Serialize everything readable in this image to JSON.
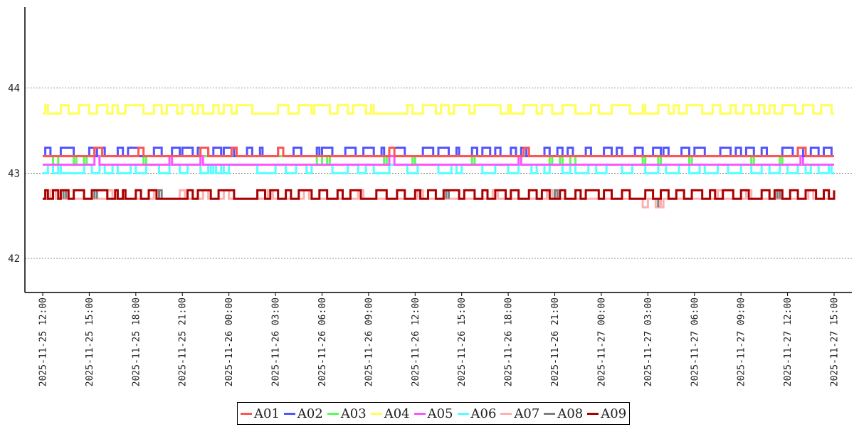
{
  "chart_data": {
    "type": "line",
    "title": "",
    "xlabel": "",
    "ylabel": "",
    "ylim": [
      41.6,
      44.95
    ],
    "yticks": [
      42,
      43,
      44
    ],
    "x_range": [
      "2025-11-25 12:00",
      "2025-11-27 15:00"
    ],
    "x_ticks": [
      "2025-11-25 12:00",
      "2025-11-25 15:00",
      "2025-11-25 18:00",
      "2025-11-25 21:00",
      "2025-11-26 00:00",
      "2025-11-26 03:00",
      "2025-11-26 06:00",
      "2025-11-26 09:00",
      "2025-11-26 12:00",
      "2025-11-26 15:00",
      "2025-11-26 18:00",
      "2025-11-26 21:00",
      "2025-11-27 00:00",
      "2025-11-27 03:00",
      "2025-11-27 06:00",
      "2025-11-27 09:00",
      "2025-11-27 12:00",
      "2025-11-27 15:00"
    ],
    "grid": "horizontal dotted",
    "legend": "bottom-center",
    "series": [
      {
        "name": "A01",
        "color": "#ff5555",
        "values": [
          43.2,
          43.3
        ],
        "switch_times": [
          "2025-11-25 15:20",
          "2025-11-25 15:50",
          "2025-11-25 18:10",
          "2025-11-25 18:30",
          "2025-11-25 22:10",
          "2025-11-25 22:40",
          "2025-11-26 00:10",
          "2025-11-26 00:30",
          "2025-11-26 03:10",
          "2025-11-26 03:30",
          "2025-11-26 10:20",
          "2025-11-26 10:40",
          "2025-11-26 19:00",
          "2025-11-26 19:20",
          "2025-11-27 12:40",
          "2025-11-27 13:10"
        ]
      },
      {
        "name": "A02",
        "color": "#5555ff",
        "values": [
          43.2,
          43.3
        ],
        "switch_times": [
          "2025-11-25 12:10",
          "2025-11-25 12:30",
          "2025-11-25 13:10",
          "2025-11-25 14:00",
          "2025-11-25 15:00",
          "2025-11-25 15:20",
          "2025-11-25 15:30",
          "2025-11-25 16:00",
          "2025-11-25 16:50",
          "2025-11-25 17:10",
          "2025-11-25 17:30",
          "2025-11-25 18:10",
          "2025-11-25 19:10",
          "2025-11-25 19:40",
          "2025-11-25 20:20",
          "2025-11-25 20:50",
          "2025-11-25 21:00",
          "2025-11-25 21:40",
          "2025-11-25 22:00",
          "2025-11-25 22:40",
          "2025-11-25 23:00",
          "2025-11-25 23:30",
          "2025-11-25 23:40",
          "2025-11-26 00:20",
          "2025-11-26 01:10",
          "2025-11-26 01:30",
          "2025-11-26 02:00",
          "2025-11-26 02:10",
          "2025-11-26 03:10",
          "2025-11-26 03:30",
          "2025-11-26 04:10",
          "2025-11-26 04:40",
          "2025-11-26 05:40",
          "2025-11-26 05:50",
          "2025-11-26 06:00",
          "2025-11-26 06:40",
          "2025-11-26 07:30",
          "2025-11-26 08:10",
          "2025-11-26 08:40",
          "2025-11-26 09:20",
          "2025-11-26 09:50",
          "2025-11-26 10:00",
          "2025-11-26 10:20",
          "2025-11-26 11:20",
          "2025-11-26 12:30",
          "2025-11-26 13:10",
          "2025-11-26 13:30",
          "2025-11-26 14:10",
          "2025-11-26 14:40",
          "2025-11-26 14:50",
          "2025-11-26 15:40",
          "2025-11-26 16:00",
          "2025-11-26 16:20",
          "2025-11-26 16:50",
          "2025-11-26 17:10",
          "2025-11-26 17:30",
          "2025-11-26 18:10",
          "2025-11-26 18:30",
          "2025-11-26 18:50",
          "2025-11-26 19:10",
          "2025-11-26 20:20",
          "2025-11-26 20:40",
          "2025-11-26 21:10",
          "2025-11-26 21:30",
          "2025-11-26 21:50",
          "2025-11-26 22:10",
          "2025-11-26 23:00",
          "2025-11-26 23:20",
          "2025-11-27 00:10",
          "2025-11-27 00:40",
          "2025-11-27 01:00",
          "2025-11-27 01:20",
          "2025-11-27 02:10",
          "2025-11-27 02:40",
          "2025-11-27 03:20",
          "2025-11-27 03:50",
          "2025-11-27 04:00",
          "2025-11-27 04:20",
          "2025-11-27 05:10",
          "2025-11-27 05:40",
          "2025-11-27 06:00",
          "2025-11-27 06:40",
          "2025-11-27 07:40",
          "2025-11-27 08:20",
          "2025-11-27 08:40",
          "2025-11-27 09:00",
          "2025-11-27 09:20",
          "2025-11-27 09:50",
          "2025-11-27 10:20",
          "2025-11-27 10:40",
          "2025-11-27 11:40",
          "2025-11-27 12:20",
          "2025-11-27 12:40",
          "2025-11-27 13:00",
          "2025-11-27 13:30",
          "2025-11-27 14:00",
          "2025-11-27 14:20",
          "2025-11-27 14:50"
        ]
      },
      {
        "name": "A03",
        "color": "#55ff55",
        "values": [
          43.2,
          43.1
        ],
        "switch_times": [
          "2025-11-25 12:40",
          "2025-11-25 13:00",
          "2025-11-25 14:00",
          "2025-11-25 14:10",
          "2025-11-25 14:40",
          "2025-11-25 14:50",
          "2025-11-25 18:30",
          "2025-11-25 18:40",
          "2025-11-26 05:40",
          "2025-11-26 06:00",
          "2025-11-26 06:20",
          "2025-11-26 06:30",
          "2025-11-26 10:00",
          "2025-11-26 10:10",
          "2025-11-26 11:50",
          "2025-11-26 12:00",
          "2025-11-26 15:40",
          "2025-11-26 15:50",
          "2025-11-26 20:40",
          "2025-11-26 20:50",
          "2025-11-26 21:20",
          "2025-11-26 21:30",
          "2025-11-26 22:00",
          "2025-11-26 22:20",
          "2025-11-27 02:40",
          "2025-11-27 02:50",
          "2025-11-27 03:40",
          "2025-11-27 03:50",
          "2025-11-27 05:40",
          "2025-11-27 05:50",
          "2025-11-27 09:40",
          "2025-11-27 09:50",
          "2025-11-27 11:30",
          "2025-11-27 11:40"
        ]
      },
      {
        "name": "A04",
        "color": "#ffff55",
        "values": [
          43.7,
          43.8
        ],
        "switch_times": [
          "2025-11-25 12:10",
          "2025-11-25 12:20",
          "2025-11-25 13:10",
          "2025-11-25 13:40",
          "2025-11-25 14:20",
          "2025-11-25 15:00",
          "2025-11-25 15:30",
          "2025-11-25 16:10",
          "2025-11-25 16:30",
          "2025-11-25 16:50",
          "2025-11-25 17:20",
          "2025-11-25 18:30",
          "2025-11-25 19:10",
          "2025-11-25 19:40",
          "2025-11-25 20:00",
          "2025-11-25 20:40",
          "2025-11-25 21:00",
          "2025-11-25 21:40",
          "2025-11-25 22:00",
          "2025-11-25 22:20",
          "2025-11-25 23:00",
          "2025-11-25 23:20",
          "2025-11-25 23:40",
          "2025-11-26 00:10",
          "2025-11-26 00:30",
          "2025-11-26 01:30",
          "2025-11-26 03:10",
          "2025-11-26 03:50",
          "2025-11-26 04:30",
          "2025-11-26 05:20",
          "2025-11-26 05:30",
          "2025-11-26 06:30",
          "2025-11-26 07:00",
          "2025-11-26 07:40",
          "2025-11-26 08:00",
          "2025-11-26 08:50",
          "2025-11-26 09:10",
          "2025-11-26 09:20",
          "2025-11-26 11:30",
          "2025-11-26 11:50",
          "2025-11-26 12:30",
          "2025-11-26 13:20",
          "2025-11-26 13:40",
          "2025-11-26 14:10",
          "2025-11-26 14:30",
          "2025-11-26 15:30",
          "2025-11-26 15:50",
          "2025-11-26 17:30",
          "2025-11-26 18:00",
          "2025-11-26 18:10",
          "2025-11-26 19:00",
          "2025-11-26 19:50",
          "2025-11-26 20:10",
          "2025-11-26 20:50",
          "2025-11-26 21:30",
          "2025-11-26 22:20",
          "2025-11-26 23:20",
          "2025-11-26 23:50",
          "2025-11-27 00:40",
          "2025-11-27 01:50",
          "2025-11-27 02:40",
          "2025-11-27 02:50",
          "2025-11-27 03:40",
          "2025-11-27 04:20",
          "2025-11-27 04:40",
          "2025-11-27 05:00",
          "2025-11-27 05:30",
          "2025-11-27 06:30",
          "2025-11-27 07:10",
          "2025-11-27 07:40",
          "2025-11-27 08:20",
          "2025-11-27 08:40",
          "2025-11-27 09:10",
          "2025-11-27 09:40",
          "2025-11-27 10:10",
          "2025-11-27 10:30",
          "2025-11-27 10:50",
          "2025-11-27 11:10",
          "2025-11-27 11:40",
          "2025-11-27 12:30",
          "2025-11-27 13:00",
          "2025-11-27 13:40",
          "2025-11-27 14:10",
          "2025-11-27 14:50"
        ]
      },
      {
        "name": "A05",
        "color": "#ff55ff",
        "values": [
          43.1,
          43.2
        ],
        "switch_times": [
          "2025-11-25 15:20",
          "2025-11-25 15:40",
          "2025-11-25 20:10",
          "2025-11-25 20:20",
          "2025-11-25 22:10",
          "2025-11-25 22:20",
          "2025-11-26 10:20",
          "2025-11-26 10:40",
          "2025-11-26 18:40",
          "2025-11-26 18:50",
          "2025-11-27 12:50",
          "2025-11-27 13:00"
        ]
      },
      {
        "name": "A06",
        "color": "#55ffff",
        "values": [
          43.0,
          43.1
        ],
        "switch_times": [
          "2025-11-25 12:20",
          "2025-11-25 12:40",
          "2025-11-25 13:00",
          "2025-11-25 13:10",
          "2025-11-25 14:40",
          "2025-11-25 15:10",
          "2025-11-25 15:40",
          "2025-11-25 16:00",
          "2025-11-25 16:30",
          "2025-11-25 16:50",
          "2025-11-25 17:40",
          "2025-11-25 18:00",
          "2025-11-25 18:40",
          "2025-11-25 19:30",
          "2025-11-25 20:10",
          "2025-11-25 20:50",
          "2025-11-25 21:20",
          "2025-11-25 22:10",
          "2025-11-25 22:40",
          "2025-11-25 22:50",
          "2025-11-25 23:00",
          "2025-11-25 23:10",
          "2025-11-25 23:30",
          "2025-11-25 23:40",
          "2025-11-26 00:00",
          "2025-11-26 01:50",
          "2025-11-26 03:00",
          "2025-11-26 03:40",
          "2025-11-26 04:20",
          "2025-11-26 05:00",
          "2025-11-26 05:20",
          "2025-11-26 06:40",
          "2025-11-26 07:40",
          "2025-11-26 08:20",
          "2025-11-26 08:50",
          "2025-11-26 09:20",
          "2025-11-26 10:20",
          "2025-11-26 11:30",
          "2025-11-26 12:10",
          "2025-11-26 13:30",
          "2025-11-26 14:20",
          "2025-11-26 14:40",
          "2025-11-26 15:00",
          "2025-11-26 16:20",
          "2025-11-26 17:10",
          "2025-11-26 18:00",
          "2025-11-26 18:40",
          "2025-11-26 19:30",
          "2025-11-26 19:50",
          "2025-11-26 20:20",
          "2025-11-26 20:40",
          "2025-11-26 21:30",
          "2025-11-26 22:00",
          "2025-11-26 22:20",
          "2025-11-26 23:10",
          "2025-11-26 23:40",
          "2025-11-27 00:20",
          "2025-11-27 01:20",
          "2025-11-27 02:00",
          "2025-11-27 02:50",
          "2025-11-27 03:40",
          "2025-11-27 04:10",
          "2025-11-27 05:00",
          "2025-11-27 05:40",
          "2025-11-27 06:20",
          "2025-11-27 06:40",
          "2025-11-27 07:30",
          "2025-11-27 08:10",
          "2025-11-27 09:00",
          "2025-11-27 09:40",
          "2025-11-27 10:20",
          "2025-11-27 10:50",
          "2025-11-27 11:30",
          "2025-11-27 12:00",
          "2025-11-27 12:40",
          "2025-11-27 13:10",
          "2025-11-27 13:30",
          "2025-11-27 14:00",
          "2025-11-27 14:40",
          "2025-11-27 14:50"
        ]
      },
      {
        "name": "A07",
        "color": "#ffb0b0",
        "values": [
          42.7,
          42.8,
          42.6
        ],
        "note_values": "base 42.7 with excursions to 42.8 and dips to 42.6"
      },
      {
        "name": "A08",
        "color": "#808080",
        "values": [
          42.7,
          42.8,
          42.6
        ]
      },
      {
        "name": "A09",
        "color": "#aa0000",
        "values": [
          42.7,
          42.8
        ],
        "switch_times": [
          "2025-11-25 12:10",
          "2025-11-25 12:20",
          "2025-11-25 12:40",
          "2025-11-25 13:00",
          "2025-11-25 13:10",
          "2025-11-25 13:40",
          "2025-11-25 14:00",
          "2025-11-25 14:40",
          "2025-11-25 15:10",
          "2025-11-25 16:10",
          "2025-11-25 16:40",
          "2025-11-25 16:50",
          "2025-11-25 17:10",
          "2025-11-25 17:20",
          "2025-11-25 18:00",
          "2025-11-25 18:20",
          "2025-11-25 18:50",
          "2025-11-25 19:20",
          "2025-11-25 21:20",
          "2025-11-25 21:40",
          "2025-11-25 22:00",
          "2025-11-25 22:50",
          "2025-11-25 23:20",
          "2025-11-26 00:20",
          "2025-11-26 01:50",
          "2025-11-26 02:20",
          "2025-11-26 02:40",
          "2025-11-26 03:10",
          "2025-11-26 03:40",
          "2025-11-26 04:00",
          "2025-11-26 04:30",
          "2025-11-26 05:20",
          "2025-11-26 05:50",
          "2025-11-26 06:20",
          "2025-11-26 07:00",
          "2025-11-26 07:20",
          "2025-11-26 07:50",
          "2025-11-26 08:30",
          "2025-11-26 09:30",
          "2025-11-26 10:10",
          "2025-11-26 10:50",
          "2025-11-26 11:20",
          "2025-11-26 12:00",
          "2025-11-26 12:20",
          "2025-11-26 12:50",
          "2025-11-26 13:20",
          "2025-11-26 13:50",
          "2025-11-26 14:50",
          "2025-11-26 15:10",
          "2025-11-26 15:50",
          "2025-11-26 16:20",
          "2025-11-26 16:40",
          "2025-11-26 17:10",
          "2025-11-26 17:50",
          "2025-11-26 18:10",
          "2025-11-26 18:40",
          "2025-11-26 19:20",
          "2025-11-26 19:50",
          "2025-11-26 20:10",
          "2025-11-26 20:40",
          "2025-11-26 21:20",
          "2025-11-26 21:40",
          "2025-11-26 22:20",
          "2025-11-26 22:40",
          "2025-11-26 23:00",
          "2025-11-26 23:50",
          "2025-11-27 00:10",
          "2025-11-27 00:40",
          "2025-11-27 01:20",
          "2025-11-27 01:50",
          "2025-11-27 02:50",
          "2025-11-27 03:20",
          "2025-11-27 03:50",
          "2025-11-27 04:20",
          "2025-11-27 04:50",
          "2025-11-27 05:20",
          "2025-11-27 05:50",
          "2025-11-27 06:30",
          "2025-11-27 07:00",
          "2025-11-27 07:20",
          "2025-11-27 07:50",
          "2025-11-27 08:30",
          "2025-11-27 09:00",
          "2025-11-27 09:30",
          "2025-11-27 10:20",
          "2025-11-27 10:50",
          "2025-11-27 11:10",
          "2025-11-27 11:40",
          "2025-11-27 12:10",
          "2025-11-27 12:40",
          "2025-11-27 13:10",
          "2025-11-27 13:50",
          "2025-11-27 14:20",
          "2025-11-27 14:40",
          "2025-11-27 15:00"
        ]
      }
    ]
  },
  "legend": {
    "items": [
      "A01",
      "A02",
      "A03",
      "A04",
      "A05",
      "A06",
      "A07",
      "A08",
      "A09"
    ]
  }
}
